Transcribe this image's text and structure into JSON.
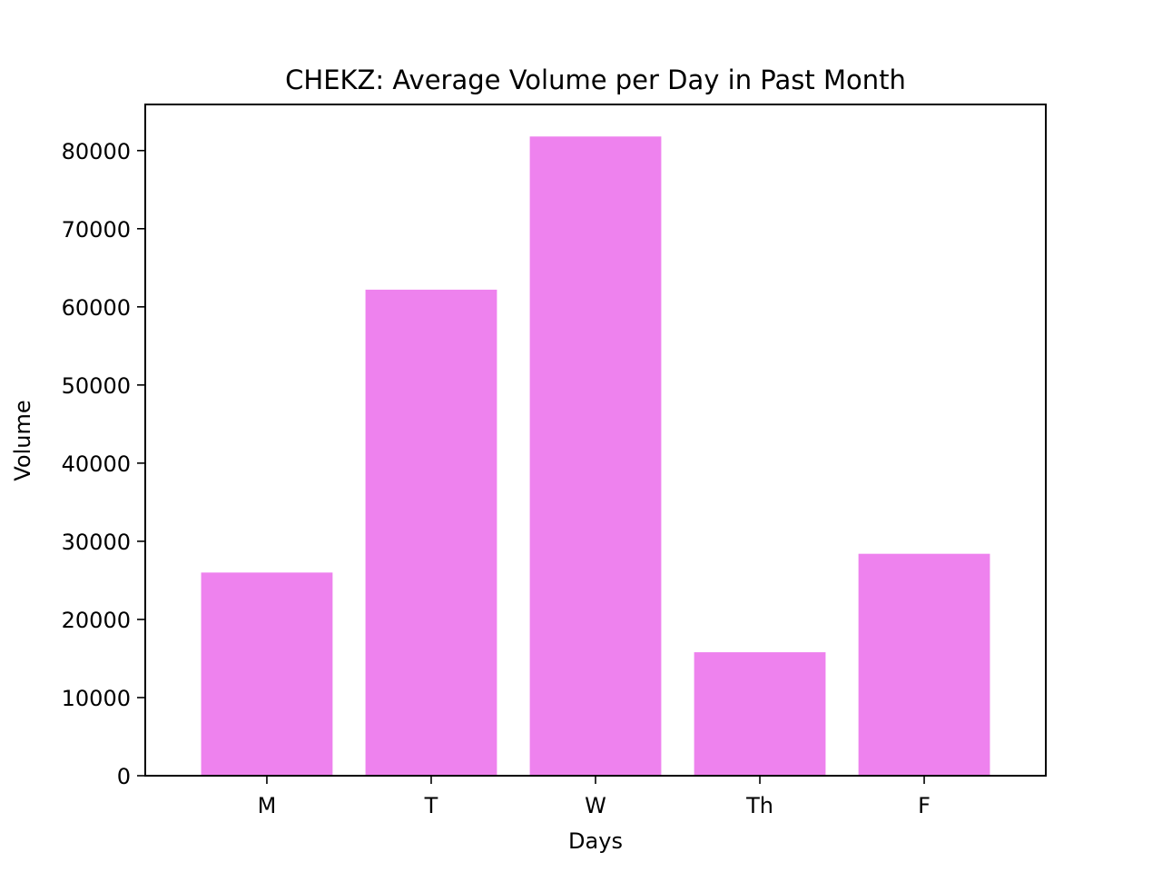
{
  "chart_data": {
    "type": "bar",
    "title": "CHEKZ: Average Volume per Day in Past Month",
    "xlabel": "Days",
    "ylabel": "Volume",
    "categories": [
      "M",
      "T",
      "W",
      "Th",
      "F"
    ],
    "values": [
      26000,
      62200,
      81800,
      15800,
      28400
    ],
    "ylim": [
      0,
      85900
    ],
    "yticks": [
      0,
      10000,
      20000,
      30000,
      40000,
      50000,
      60000,
      70000,
      80000
    ],
    "ytick_labels": [
      "0",
      "10000",
      "20000",
      "30000",
      "40000",
      "50000",
      "60000",
      "70000",
      "80000"
    ],
    "grid": false,
    "bar_color": "#ee82ee"
  }
}
